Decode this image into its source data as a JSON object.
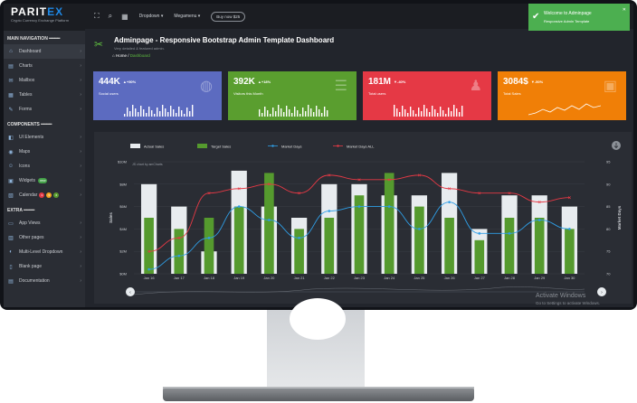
{
  "brand": {
    "name_prefix": "PARIT",
    "name_accent": "EX",
    "tagline": "Crypto Currency Exchange Platform"
  },
  "sidebar": {
    "main_heading": "MAIN NAVIGATION",
    "main_items": [
      {
        "label": "Dashboard",
        "icon": "home-icon",
        "active": true
      },
      {
        "label": "Charts",
        "icon": "chart-icon"
      },
      {
        "label": "Mailbox",
        "icon": "mail-icon"
      },
      {
        "label": "Tables",
        "icon": "table-icon"
      },
      {
        "label": "Forms",
        "icon": "form-icon"
      }
    ],
    "components_heading": "COMPONENTS",
    "component_items": [
      {
        "label": "UI Elements",
        "icon": "ui-icon"
      },
      {
        "label": "Maps",
        "icon": "map-icon"
      },
      {
        "label": "Icons",
        "icon": "icons-icon"
      },
      {
        "label": "Widgets",
        "icon": "widgets-icon",
        "badge": "new"
      },
      {
        "label": "Calendar",
        "icon": "calendar-icon",
        "dots": [
          "3",
          "5",
          "6"
        ]
      }
    ],
    "extra_heading": "EXTRA",
    "extra_items": [
      {
        "label": "App Views",
        "icon": "app-icon"
      },
      {
        "label": "Other pages",
        "icon": "pages-icon"
      },
      {
        "label": "Multi-Level Dropdown",
        "icon": "multilevel-icon"
      },
      {
        "label": "Blank page",
        "icon": "blank-icon"
      },
      {
        "label": "Documentation",
        "icon": "doc-icon"
      }
    ]
  },
  "topbar": {
    "dropdown": "Dropdown",
    "megamenu": "Megamenu",
    "buy": "Buy now $25"
  },
  "toast": {
    "title": "Welcome to Adminpage",
    "body": "Responsive Admin Template"
  },
  "page": {
    "title": "Adminpage - Responsive Bootstrap Admin Template Dashboard",
    "subtitle": "Very detailed & featured admin.",
    "breadcrumb_home": "Home",
    "breadcrumb_current": "Dashboard"
  },
  "cards": [
    {
      "value": "444K",
      "change": "+50%",
      "label": "Social users",
      "color": "#5c6bc0",
      "trend": "up",
      "icon": "globe-icon"
    },
    {
      "value": "392K",
      "change": "+18%",
      "label": "Visitors this Month",
      "color": "#5a9e2f",
      "trend": "up",
      "icon": "database-icon"
    },
    {
      "value": "181M",
      "change": "-40%",
      "label": "Total users",
      "color": "#e53945",
      "trend": "down",
      "icon": "user-icon"
    },
    {
      "value": "3084$",
      "change": "-50%",
      "label": "Total Sales",
      "color": "#f07f07",
      "trend": "down",
      "icon": "bag-icon"
    }
  ],
  "chart_data": {
    "type": "bar",
    "categories": [
      "Jan 16",
      "Jan 17",
      "Jan 18",
      "Jan 19",
      "Jan 20",
      "Jan 21",
      "Jan 22",
      "Jan 23",
      "Jan 24",
      "Jan 25",
      "Jan 26",
      "Jan 27",
      "Jan 28",
      "Jan 29",
      "Jan 30"
    ],
    "series": [
      {
        "name": "Actual Sales",
        "type": "bar",
        "axis": "left",
        "color": "#e8ecef",
        "values": [
          8,
          6,
          2,
          9.2,
          6,
          5,
          8,
          8,
          7,
          7,
          9,
          4,
          7,
          7,
          6
        ]
      },
      {
        "name": "Target Sales",
        "type": "bar",
        "axis": "left",
        "color": "#559a2e",
        "values": [
          5,
          4,
          5,
          6,
          9,
          4,
          5,
          7,
          9,
          6,
          5,
          3,
          5,
          5,
          4
        ]
      },
      {
        "name": "Market Days",
        "type": "line",
        "axis": "right",
        "color": "#2f9ee6",
        "values": [
          71,
          74,
          78,
          85,
          82,
          78,
          84,
          85,
          85,
          80,
          86,
          79,
          79,
          82,
          80
        ]
      },
      {
        "name": "Market Days ALL",
        "type": "line",
        "axis": "right",
        "color": "#e53945",
        "values": [
          75,
          78,
          88,
          89,
          90,
          88,
          92,
          91,
          91,
          92,
          89,
          88,
          88,
          86,
          87
        ]
      }
    ],
    "ylabel": "Sales",
    "y2label": "Market Days",
    "ylim": [
      0,
      10
    ],
    "y_ticks": [
      "$0M",
      "$2M",
      "$4M",
      "$6M",
      "$8M",
      "$10M"
    ],
    "y2lim": [
      70,
      95
    ],
    "y2_ticks": [
      "70",
      "75",
      "80",
      "85",
      "90",
      "95"
    ],
    "credit": "JS chart by amCharts",
    "legend_position": "top"
  },
  "watermark": {
    "title": "Activate Windows",
    "body": "Go to Settings to activate Windows."
  }
}
